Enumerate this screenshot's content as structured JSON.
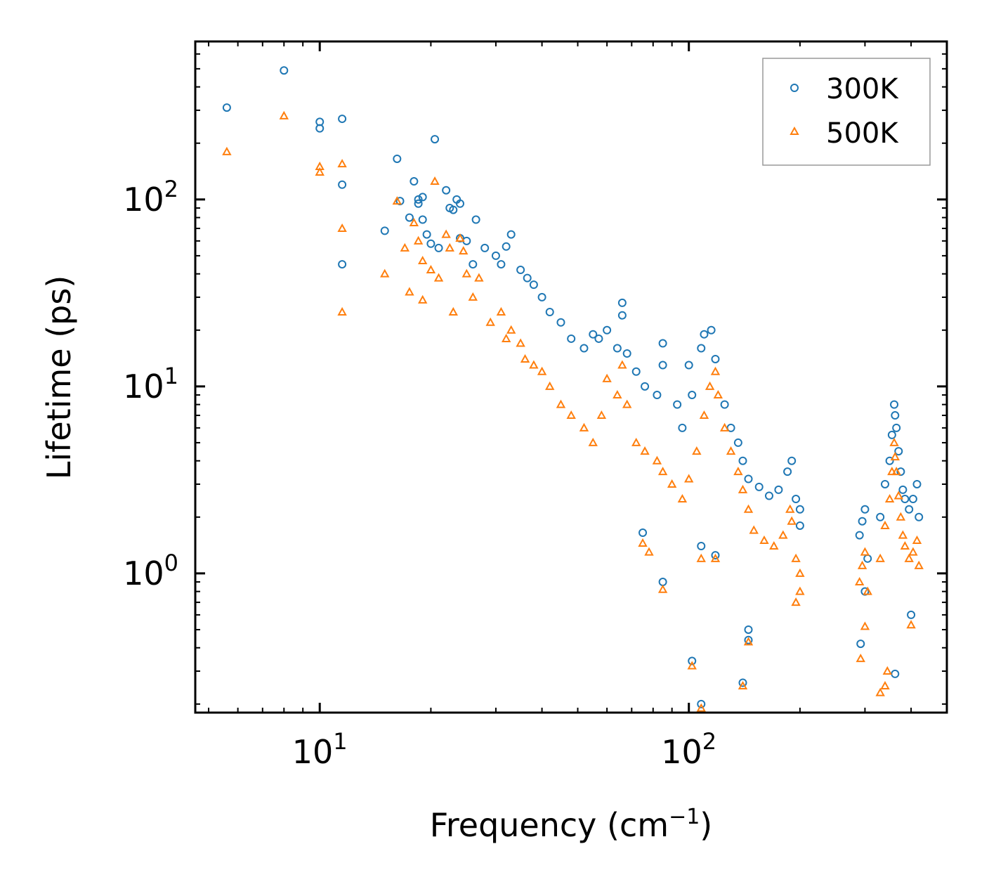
{
  "chart_data": {
    "type": "scatter",
    "title": "",
    "xlabel": "Frequency (cm",
    "xlabel_sup": "−1",
    "xlabel_end": ")",
    "ylabel": "Lifetime (ps)",
    "xscale": "log",
    "yscale": "log",
    "xlim": [
      4.6,
      500
    ],
    "ylim": [
      0.18,
      700
    ],
    "x_ticks": [
      {
        "value": 10,
        "base": "10",
        "exp": "1"
      },
      {
        "value": 100,
        "base": "10",
        "exp": "2"
      }
    ],
    "y_ticks": [
      {
        "value": 1,
        "base": "10",
        "exp": "0"
      },
      {
        "value": 10,
        "base": "10",
        "exp": "1"
      },
      {
        "value": 100,
        "base": "10",
        "exp": "2"
      }
    ],
    "legend_position": "top-right",
    "series": [
      {
        "name": "300K",
        "marker": "circle",
        "color": "#1f77b4",
        "points": [
          [
            5.6,
            310
          ],
          [
            8.0,
            490
          ],
          [
            10.0,
            260
          ],
          [
            10.0,
            240
          ],
          [
            11.5,
            270
          ],
          [
            11.5,
            120
          ],
          [
            11.5,
            45
          ],
          [
            15.0,
            68
          ],
          [
            16.2,
            165
          ],
          [
            16.5,
            98
          ],
          [
            17.5,
            80
          ],
          [
            18.0,
            125
          ],
          [
            18.5,
            100
          ],
          [
            18.5,
            95
          ],
          [
            19.0,
            103
          ],
          [
            19.0,
            78
          ],
          [
            19.5,
            65
          ],
          [
            20.0,
            58
          ],
          [
            20.5,
            210
          ],
          [
            21.0,
            55
          ],
          [
            22.0,
            112
          ],
          [
            22.5,
            90
          ],
          [
            23.0,
            88
          ],
          [
            23.5,
            100
          ],
          [
            24.0,
            95
          ],
          [
            24.0,
            62
          ],
          [
            25.0,
            60
          ],
          [
            26.0,
            45
          ],
          [
            26.5,
            78
          ],
          [
            28.0,
            55
          ],
          [
            30.0,
            50
          ],
          [
            31.0,
            45
          ],
          [
            32.0,
            56
          ],
          [
            33.0,
            65
          ],
          [
            35.0,
            42
          ],
          [
            36.5,
            38
          ],
          [
            38.0,
            35
          ],
          [
            40.0,
            30
          ],
          [
            42.0,
            25
          ],
          [
            45.0,
            22
          ],
          [
            48.0,
            18
          ],
          [
            52.0,
            16
          ],
          [
            55.0,
            19
          ],
          [
            57.0,
            18
          ],
          [
            60.0,
            20
          ],
          [
            64.0,
            16
          ],
          [
            66.0,
            28
          ],
          [
            66.0,
            24
          ],
          [
            68.0,
            15
          ],
          [
            72.0,
            12
          ],
          [
            76.0,
            10
          ],
          [
            82.0,
            9
          ],
          [
            85.0,
            17
          ],
          [
            85.0,
            13
          ],
          [
            93.0,
            8
          ],
          [
            96.0,
            6
          ],
          [
            100.0,
            13
          ],
          [
            102.0,
            9
          ],
          [
            108.0,
            16
          ],
          [
            110.0,
            19
          ],
          [
            115.0,
            20
          ],
          [
            118.0,
            14
          ],
          [
            125.0,
            8
          ],
          [
            130.0,
            6
          ],
          [
            136.0,
            5
          ],
          [
            140.0,
            4
          ],
          [
            145.0,
            3.2
          ],
          [
            155.0,
            2.9
          ],
          [
            165.0,
            2.6
          ],
          [
            175.0,
            2.8
          ],
          [
            185.0,
            3.5
          ],
          [
            190.0,
            4.0
          ],
          [
            195.0,
            2.5
          ],
          [
            200.0,
            2.2
          ],
          [
            200.0,
            1.8
          ],
          [
            75.0,
            1.65
          ],
          [
            85.0,
            0.9
          ],
          [
            102.0,
            0.34
          ],
          [
            108.0,
            1.4
          ],
          [
            108.0,
            0.2
          ],
          [
            118.0,
            1.25
          ],
          [
            140.0,
            0.26
          ],
          [
            145.0,
            0.5
          ],
          [
            145.0,
            0.44
          ],
          [
            290.0,
            1.6
          ],
          [
            295.0,
            1.9
          ],
          [
            300.0,
            2.2
          ],
          [
            305.0,
            1.2
          ],
          [
            292.0,
            0.42
          ],
          [
            300.0,
            0.8
          ],
          [
            330.0,
            2.0
          ],
          [
            340.0,
            3.0
          ],
          [
            350.0,
            4.0
          ],
          [
            355.0,
            5.5
          ],
          [
            360.0,
            8.0
          ],
          [
            362.0,
            7.0
          ],
          [
            365.0,
            6.0
          ],
          [
            370.0,
            4.5
          ],
          [
            375.0,
            3.5
          ],
          [
            380.0,
            2.8
          ],
          [
            385.0,
            2.5
          ],
          [
            395.0,
            2.2
          ],
          [
            405.0,
            2.5
          ],
          [
            415.0,
            3.0
          ],
          [
            420.0,
            2.0
          ],
          [
            362.0,
            0.29
          ],
          [
            400.0,
            0.6
          ]
        ]
      },
      {
        "name": "500K",
        "marker": "triangle",
        "color": "#ff7f0e",
        "points": [
          [
            5.6,
            180
          ],
          [
            8.0,
            280
          ],
          [
            10.0,
            150
          ],
          [
            10.0,
            140
          ],
          [
            11.5,
            155
          ],
          [
            11.5,
            70
          ],
          [
            11.5,
            25
          ],
          [
            15.0,
            40
          ],
          [
            16.2,
            98
          ],
          [
            17.0,
            55
          ],
          [
            17.5,
            32
          ],
          [
            18.0,
            75
          ],
          [
            18.5,
            60
          ],
          [
            19.0,
            47
          ],
          [
            19.0,
            29
          ],
          [
            20.0,
            42
          ],
          [
            20.5,
            125
          ],
          [
            21.0,
            38
          ],
          [
            22.0,
            65
          ],
          [
            22.5,
            55
          ],
          [
            23.0,
            25
          ],
          [
            24.0,
            62
          ],
          [
            24.5,
            53
          ],
          [
            25.0,
            40
          ],
          [
            26.0,
            30
          ],
          [
            27.0,
            38
          ],
          [
            29.0,
            22
          ],
          [
            31.0,
            25
          ],
          [
            32.0,
            18
          ],
          [
            33.0,
            20
          ],
          [
            35.0,
            17
          ],
          [
            36.0,
            14
          ],
          [
            38.0,
            13
          ],
          [
            40.0,
            12
          ],
          [
            42.0,
            10
          ],
          [
            45.0,
            8
          ],
          [
            48.0,
            7
          ],
          [
            52.0,
            6
          ],
          [
            55.0,
            5
          ],
          [
            58.0,
            7
          ],
          [
            60.0,
            11
          ],
          [
            64.0,
            9
          ],
          [
            66.0,
            13
          ],
          [
            68.0,
            8
          ],
          [
            72.0,
            5
          ],
          [
            76.0,
            4.5
          ],
          [
            82.0,
            4
          ],
          [
            85.0,
            3.5
          ],
          [
            90.0,
            3
          ],
          [
            96.0,
            2.5
          ],
          [
            100.0,
            3.2
          ],
          [
            105.0,
            4.5
          ],
          [
            110.0,
            7
          ],
          [
            114.0,
            10
          ],
          [
            118.0,
            12
          ],
          [
            120.0,
            9
          ],
          [
            125.0,
            6
          ],
          [
            130.0,
            4.5
          ],
          [
            136.0,
            3.5
          ],
          [
            140.0,
            2.8
          ],
          [
            145.0,
            2.2
          ],
          [
            150.0,
            1.7
          ],
          [
            160.0,
            1.5
          ],
          [
            170.0,
            1.4
          ],
          [
            180.0,
            1.6
          ],
          [
            188.0,
            2.2
          ],
          [
            190.0,
            1.9
          ],
          [
            195.0,
            1.2
          ],
          [
            200.0,
            1.0
          ],
          [
            200.0,
            0.8
          ],
          [
            195.0,
            0.7
          ],
          [
            75.0,
            1.45
          ],
          [
            78.0,
            1.3
          ],
          [
            85.0,
            0.82
          ],
          [
            102.0,
            0.32
          ],
          [
            108.0,
            1.2
          ],
          [
            108.0,
            0.19
          ],
          [
            118.0,
            1.2
          ],
          [
            140.0,
            0.25
          ],
          [
            145.0,
            0.43
          ],
          [
            290.0,
            0.9
          ],
          [
            295.0,
            1.1
          ],
          [
            300.0,
            1.3
          ],
          [
            305.0,
            0.8
          ],
          [
            292.0,
            0.35
          ],
          [
            300.0,
            0.52
          ],
          [
            330.0,
            1.2
          ],
          [
            340.0,
            1.8
          ],
          [
            350.0,
            2.5
          ],
          [
            355.0,
            3.5
          ],
          [
            360.0,
            5.0
          ],
          [
            362.0,
            4.2
          ],
          [
            365.0,
            3.5
          ],
          [
            370.0,
            2.6
          ],
          [
            375.0,
            2.0
          ],
          [
            380.0,
            1.6
          ],
          [
            385.0,
            1.4
          ],
          [
            395.0,
            1.2
          ],
          [
            405.0,
            1.3
          ],
          [
            415.0,
            1.5
          ],
          [
            420.0,
            1.1
          ],
          [
            330.0,
            0.23
          ],
          [
            340.0,
            0.25
          ],
          [
            345.0,
            0.3
          ],
          [
            400.0,
            0.53
          ]
        ]
      }
    ]
  }
}
